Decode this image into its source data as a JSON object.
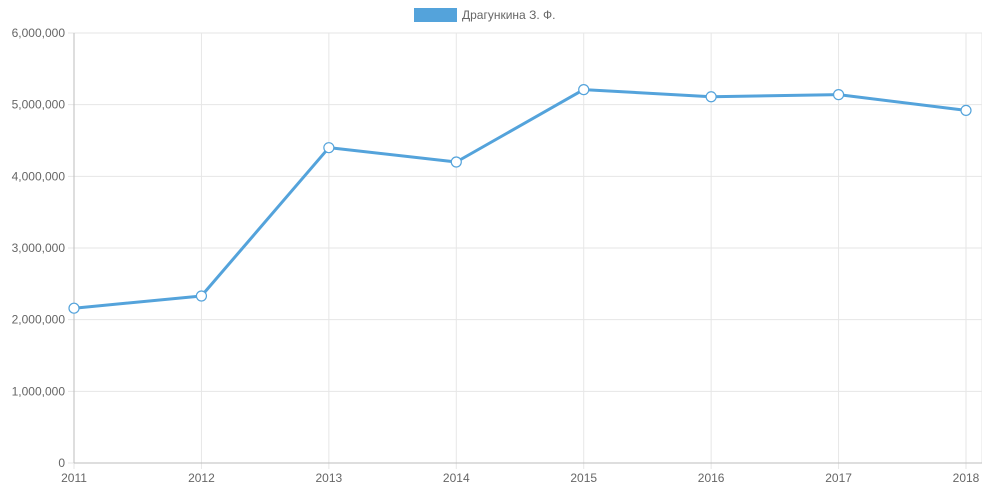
{
  "chart_data": {
    "type": "line",
    "x": [
      "2011",
      "2012",
      "2013",
      "2014",
      "2015",
      "2016",
      "2017",
      "2018"
    ],
    "series": [
      {
        "name": "Драгункина З. Ф.",
        "values": [
          2160000,
          2330000,
          4400000,
          4200000,
          5210000,
          5110000,
          5140000,
          4920000
        ],
        "color": "#54a3db"
      }
    ],
    "ylim": [
      0,
      6000000
    ],
    "yticks": [
      0,
      1000000,
      2000000,
      3000000,
      4000000,
      5000000,
      6000000
    ],
    "ytick_labels": [
      "0",
      "1,000,000",
      "2,000,000",
      "3,000,000",
      "4,000,000",
      "5,000,000",
      "6,000,000"
    ],
    "title": "",
    "xlabel": "",
    "ylabel": "",
    "grid": true,
    "legend": "top-center"
  }
}
